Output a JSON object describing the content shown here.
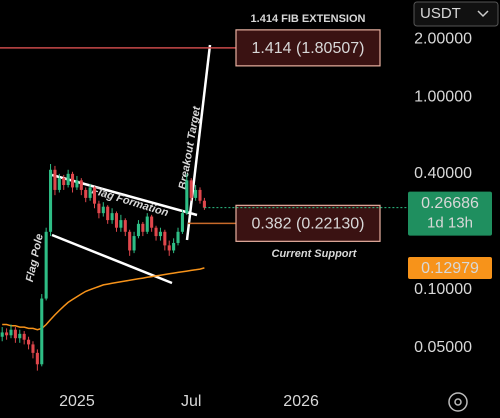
{
  "chart_data": {
    "type": "candlestick",
    "currency": "USDT",
    "ylim": [
      0.032,
      3.2
    ],
    "log_scale": true,
    "yticks": [
      {
        "value": 2,
        "label": "2.00000"
      },
      {
        "value": 1,
        "label": "1.00000"
      },
      {
        "value": 0.4,
        "label": "0.40000"
      },
      {
        "value": 0.1,
        "label": "0.10000"
      },
      {
        "value": 0.05,
        "label": "0.05000"
      }
    ],
    "xlim": [
      -0.5,
      90.5
    ],
    "xticks": [
      {
        "value": 17,
        "label": "2025"
      },
      {
        "value": 43,
        "label": "Jul"
      },
      {
        "value": 68,
        "label": "2026"
      }
    ],
    "up_color": "#2ebd85",
    "down_color": "#e0474c",
    "open": [
      0.057,
      0.06,
      0.058,
      0.062,
      0.056,
      0.059,
      0.055,
      0.052,
      0.047,
      0.041,
      0.09,
      0.2,
      0.42,
      0.33,
      0.38,
      0.35,
      0.4,
      0.34,
      0.37,
      0.33,
      0.3,
      0.34,
      0.28,
      0.25,
      0.27,
      0.23,
      0.25,
      0.21,
      0.23,
      0.2,
      0.16,
      0.19,
      0.22,
      0.2,
      0.24,
      0.21,
      0.19,
      0.2,
      0.17,
      0.16,
      0.175,
      0.2,
      0.25,
      0.37,
      0.3,
      0.33,
      0.29
    ],
    "high": [
      0.064,
      0.063,
      0.066,
      0.064,
      0.062,
      0.061,
      0.057,
      0.054,
      0.049,
      0.095,
      0.21,
      0.45,
      0.44,
      0.4,
      0.395,
      0.42,
      0.41,
      0.39,
      0.38,
      0.34,
      0.355,
      0.345,
      0.29,
      0.285,
      0.275,
      0.265,
      0.255,
      0.245,
      0.235,
      0.205,
      0.2,
      0.23,
      0.225,
      0.25,
      0.245,
      0.215,
      0.21,
      0.205,
      0.18,
      0.185,
      0.21,
      0.26,
      0.4,
      0.38,
      0.35,
      0.34,
      0.3
    ],
    "low": [
      0.054,
      0.055,
      0.056,
      0.053,
      0.053,
      0.052,
      0.049,
      0.044,
      0.038,
      0.04,
      0.088,
      0.19,
      0.31,
      0.32,
      0.33,
      0.34,
      0.32,
      0.33,
      0.31,
      0.285,
      0.29,
      0.265,
      0.235,
      0.24,
      0.22,
      0.22,
      0.2,
      0.2,
      0.19,
      0.15,
      0.155,
      0.185,
      0.19,
      0.195,
      0.2,
      0.18,
      0.18,
      0.16,
      0.15,
      0.155,
      0.17,
      0.195,
      0.245,
      0.29,
      0.29,
      0.28,
      0.26
    ],
    "close": [
      0.06,
      0.058,
      0.062,
      0.056,
      0.059,
      0.055,
      0.052,
      0.047,
      0.041,
      0.09,
      0.2,
      0.42,
      0.33,
      0.38,
      0.35,
      0.4,
      0.34,
      0.37,
      0.33,
      0.3,
      0.34,
      0.28,
      0.25,
      0.27,
      0.23,
      0.25,
      0.21,
      0.23,
      0.2,
      0.16,
      0.19,
      0.22,
      0.2,
      0.24,
      0.21,
      0.19,
      0.2,
      0.17,
      0.16,
      0.175,
      0.2,
      0.25,
      0.37,
      0.3,
      0.33,
      0.29,
      0.26686
    ],
    "ma": {
      "color": "#f7931a",
      "values": [
        0.066,
        0.066,
        0.065,
        0.065,
        0.064,
        0.064,
        0.063,
        0.063,
        0.062,
        0.063,
        0.066,
        0.07,
        0.074,
        0.078,
        0.082,
        0.086,
        0.089,
        0.092,
        0.095,
        0.098,
        0.1,
        0.102,
        0.104,
        0.106,
        0.107,
        0.108,
        0.109,
        0.11,
        0.111,
        0.112,
        0.113,
        0.114,
        0.115,
        0.116,
        0.117,
        0.118,
        0.119,
        0.12,
        0.121,
        0.122,
        0.123,
        0.124,
        0.125,
        0.126,
        0.127,
        0.128,
        0.12979
      ]
    },
    "countdown": "1d 13h",
    "levels": [
      {
        "title": "1.414 FIB EXTENSION",
        "label": "1.414 (1.80507)",
        "value": 1.80507,
        "color": "#ff5a5a"
      },
      {
        "title": "Current Support",
        "label": "0.382 (0.22130)",
        "value": 0.2213,
        "color": "#f5a04a"
      }
    ],
    "annotations": [
      "Flag Pole",
      "Flag Formation",
      "Breakout Target"
    ]
  }
}
